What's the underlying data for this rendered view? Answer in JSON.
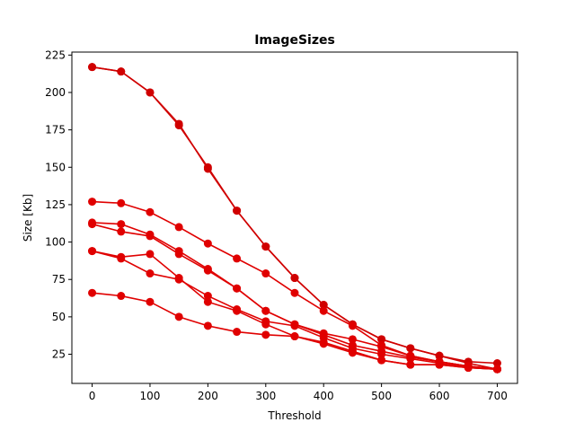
{
  "chart_data": {
    "type": "line",
    "title": "ImageSizes",
    "xlabel": "Threshold",
    "ylabel": "Size [Kb]",
    "xlim": [
      -35,
      735
    ],
    "ylim": [
      5.5,
      227
    ],
    "xticks": [
      0,
      100,
      200,
      300,
      400,
      500,
      600,
      700
    ],
    "yticks": [
      25,
      50,
      75,
      100,
      125,
      150,
      175,
      200,
      225
    ],
    "grid": false,
    "legend": "none",
    "x": [
      0,
      50,
      100,
      150,
      200,
      250,
      300,
      350,
      400,
      450,
      500,
      550,
      600,
      650,
      700
    ],
    "series": [
      {
        "color": "#d00000",
        "values": [
          217,
          214,
          200,
          178,
          150,
          121,
          97,
          76,
          58,
          45,
          35,
          29,
          24,
          20,
          19
        ]
      },
      {
        "color": "#d00000",
        "values": [
          217,
          214,
          200,
          179,
          149,
          121,
          97,
          76,
          58,
          45,
          35,
          29,
          24,
          19,
          15
        ]
      },
      {
        "color": "#e00000",
        "values": [
          127,
          126,
          120,
          110,
          99,
          89,
          79,
          66,
          54,
          44,
          31,
          24,
          20,
          17,
          15
        ]
      },
      {
        "color": "#e00000",
        "values": [
          113,
          112,
          105,
          94,
          82,
          69,
          54,
          45,
          39,
          35,
          30,
          24,
          20,
          17,
          15
        ]
      },
      {
        "color": "#e00000",
        "values": [
          112,
          107,
          104,
          92,
          81,
          69,
          54,
          45,
          38,
          31,
          27,
          23,
          20,
          17,
          15
        ]
      },
      {
        "color": "#e00000",
        "values": [
          94,
          89,
          79,
          75,
          64,
          55,
          47,
          44,
          36,
          29,
          25,
          22,
          19,
          16,
          15
        ]
      },
      {
        "color": "#e00000",
        "values": [
          94,
          90,
          92,
          76,
          60,
          54,
          45,
          37,
          33,
          27,
          21,
          18,
          18,
          16,
          15
        ]
      },
      {
        "color": "#e00000",
        "values": [
          66,
          64,
          60,
          50,
          44,
          40,
          38,
          37,
          32,
          26,
          21,
          18,
          18,
          16,
          15
        ]
      }
    ]
  }
}
